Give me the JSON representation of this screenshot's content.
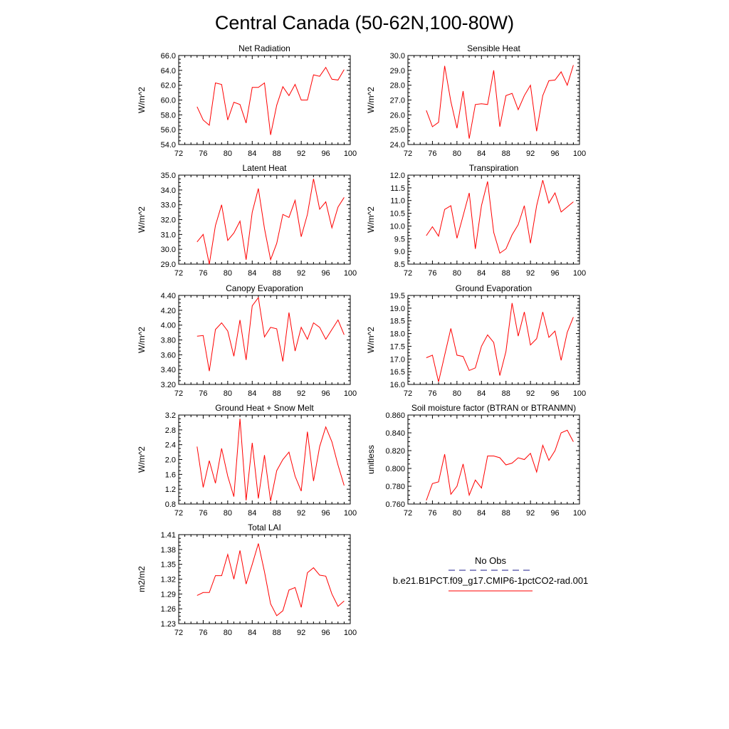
{
  "title": "Central Canada (50-62N,100-80W)",
  "legend": {
    "entries": [
      {
        "label": "No Obs",
        "color": "#1e1e8c",
        "dash": "dashed"
      },
      {
        "label": "b.e21.B1PCT.f09_g17.CMIP6-1pctCO2-rad.001",
        "color": "#ff0000",
        "dash": "solid"
      }
    ]
  },
  "chart_data": [
    {
      "type": "line",
      "title": "Net Radiation",
      "ylabel": "W/m^2",
      "xlim": [
        72,
        100
      ],
      "ylim": [
        54.0,
        66.0
      ],
      "xticks": [
        "72",
        "76",
        "80",
        "84",
        "88",
        "92",
        "96",
        "100"
      ],
      "yticks": [
        "54.0",
        "56.0",
        "58.0",
        "60.0",
        "62.0",
        "64.0",
        "66.0"
      ],
      "x": [
        75,
        76,
        77,
        78,
        79,
        80,
        81,
        82,
        83,
        84,
        85,
        86,
        87,
        88,
        89,
        90,
        91,
        92,
        93,
        94,
        95,
        96,
        97,
        98,
        99
      ],
      "series": [
        {
          "color": "#ff0000",
          "values": [
            59.1,
            57.3,
            56.6,
            62.3,
            62.1,
            57.3,
            59.7,
            59.4,
            56.9,
            61.7,
            61.7,
            62.3,
            55.3,
            59.3,
            61.8,
            60.6,
            62.1,
            60.0,
            60.0,
            63.4,
            63.2,
            64.4,
            62.8,
            62.7,
            64.1
          ]
        }
      ]
    },
    {
      "type": "line",
      "title": "Sensible Heat",
      "ylabel": "W/m^2",
      "xlim": [
        72,
        100
      ],
      "ylim": [
        24.0,
        30.0
      ],
      "xticks": [
        "72",
        "76",
        "80",
        "84",
        "88",
        "92",
        "96",
        "100"
      ],
      "yticks": [
        "24.0",
        "25.0",
        "26.0",
        "27.0",
        "28.0",
        "29.0",
        "30.0"
      ],
      "x": [
        75,
        76,
        77,
        78,
        79,
        80,
        81,
        82,
        83,
        84,
        85,
        86,
        87,
        88,
        89,
        90,
        91,
        92,
        93,
        94,
        95,
        96,
        97,
        98,
        99
      ],
      "series": [
        {
          "color": "#ff0000",
          "values": [
            26.3,
            25.2,
            25.5,
            29.3,
            26.9,
            25.1,
            27.6,
            24.4,
            26.7,
            26.75,
            26.7,
            29.0,
            25.2,
            27.3,
            27.45,
            26.35,
            27.3,
            28.0,
            24.9,
            27.3,
            28.3,
            28.35,
            28.9,
            28.0,
            29.35
          ]
        }
      ]
    },
    {
      "type": "line",
      "title": "Latent Heat",
      "ylabel": "W/m^2",
      "xlim": [
        72,
        100
      ],
      "ylim": [
        29.0,
        35.0
      ],
      "xticks": [
        "72",
        "76",
        "80",
        "84",
        "88",
        "92",
        "96",
        "100"
      ],
      "yticks": [
        "29.0",
        "30.0",
        "31.0",
        "32.0",
        "33.0",
        "34.0",
        "35.0"
      ],
      "x": [
        75,
        76,
        77,
        78,
        79,
        80,
        81,
        82,
        83,
        84,
        85,
        86,
        87,
        88,
        89,
        90,
        91,
        92,
        93,
        94,
        95,
        96,
        97,
        98,
        99
      ],
      "series": [
        {
          "color": "#ff0000",
          "values": [
            30.5,
            31.0,
            29.0,
            31.6,
            33.0,
            30.6,
            31.1,
            31.9,
            29.3,
            32.5,
            34.1,
            31.4,
            29.3,
            30.4,
            32.35,
            32.15,
            33.3,
            30.85,
            32.35,
            34.75,
            32.7,
            33.2,
            31.45,
            32.85,
            33.5
          ]
        }
      ]
    },
    {
      "type": "line",
      "title": "Transpiration",
      "ylabel": "W/m^2",
      "xlim": [
        72,
        100
      ],
      "ylim": [
        8.5,
        12.0
      ],
      "xticks": [
        "72",
        "76",
        "80",
        "84",
        "88",
        "92",
        "96",
        "100"
      ],
      "yticks": [
        "8.5",
        "9.0",
        "9.5",
        "10.0",
        "10.5",
        "11.0",
        "11.5",
        "12.0"
      ],
      "x": [
        75,
        76,
        77,
        78,
        79,
        80,
        81,
        82,
        83,
        84,
        85,
        86,
        87,
        88,
        89,
        90,
        91,
        92,
        93,
        94,
        95,
        96,
        97,
        98,
        99
      ],
      "series": [
        {
          "color": "#ff0000",
          "values": [
            9.62,
            9.97,
            9.6,
            10.65,
            10.8,
            9.52,
            10.4,
            11.3,
            9.1,
            10.8,
            11.75,
            9.75,
            8.93,
            9.1,
            9.65,
            10.05,
            10.8,
            9.32,
            10.8,
            11.8,
            10.9,
            11.3,
            10.55,
            10.75,
            10.95
          ]
        }
      ]
    },
    {
      "type": "line",
      "title": "Canopy Evaporation",
      "ylabel": "W/m^2",
      "xlim": [
        72,
        100
      ],
      "ylim": [
        3.2,
        4.4
      ],
      "xticks": [
        "72",
        "76",
        "80",
        "84",
        "88",
        "92",
        "96",
        "100"
      ],
      "yticks": [
        "3.20",
        "3.40",
        "3.60",
        "3.80",
        "4.00",
        "4.20",
        "4.40"
      ],
      "x": [
        75,
        76,
        77,
        78,
        79,
        80,
        81,
        82,
        83,
        84,
        85,
        86,
        87,
        88,
        89,
        90,
        91,
        92,
        93,
        94,
        95,
        96,
        97,
        98,
        99
      ],
      "series": [
        {
          "color": "#ff0000",
          "values": [
            3.85,
            3.86,
            3.38,
            3.94,
            4.03,
            3.92,
            3.58,
            4.07,
            3.53,
            4.26,
            4.37,
            3.84,
            3.97,
            3.95,
            3.51,
            4.17,
            3.65,
            3.97,
            3.81,
            4.03,
            3.97,
            3.81,
            3.94,
            4.07,
            3.87
          ]
        }
      ]
    },
    {
      "type": "line",
      "title": "Ground Evaporation",
      "ylabel": "W/m^2",
      "xlim": [
        72,
        100
      ],
      "ylim": [
        16.0,
        19.5
      ],
      "xticks": [
        "72",
        "76",
        "80",
        "84",
        "88",
        "92",
        "96",
        "100"
      ],
      "yticks": [
        "16.0",
        "16.5",
        "17.0",
        "17.5",
        "18.0",
        "18.5",
        "19.0",
        "19.5"
      ],
      "x": [
        75,
        76,
        77,
        78,
        79,
        80,
        81,
        82,
        83,
        84,
        85,
        86,
        87,
        88,
        89,
        90,
        91,
        92,
        93,
        94,
        95,
        96,
        97,
        98,
        99
      ],
      "series": [
        {
          "color": "#ff0000",
          "values": [
            17.05,
            17.15,
            16.1,
            17.15,
            18.2,
            17.15,
            17.1,
            16.55,
            16.65,
            17.5,
            17.95,
            17.65,
            16.35,
            17.3,
            19.2,
            17.9,
            18.85,
            17.55,
            17.8,
            18.85,
            17.85,
            18.1,
            16.95,
            18.05,
            18.65
          ]
        }
      ]
    },
    {
      "type": "line",
      "title": "Ground Heat + Snow Melt",
      "ylabel": "W/m^2",
      "xlim": [
        72,
        100
      ],
      "ylim": [
        0.8,
        3.2
      ],
      "xticks": [
        "72",
        "76",
        "80",
        "84",
        "88",
        "92",
        "96",
        "100"
      ],
      "yticks": [
        "0.8",
        "1.2",
        "1.6",
        "2.0",
        "2.4",
        "2.8",
        "3.2"
      ],
      "x": [
        75,
        76,
        77,
        78,
        79,
        80,
        81,
        82,
        83,
        84,
        85,
        86,
        87,
        88,
        89,
        90,
        91,
        92,
        93,
        94,
        95,
        96,
        97,
        98,
        99
      ],
      "series": [
        {
          "color": "#ff0000",
          "values": [
            2.35,
            1.25,
            1.97,
            1.36,
            2.3,
            1.55,
            1.0,
            3.1,
            0.9,
            2.45,
            0.95,
            2.12,
            0.88,
            1.7,
            2.0,
            2.2,
            1.55,
            1.15,
            2.75,
            1.42,
            2.35,
            2.88,
            2.48,
            1.85,
            1.3
          ]
        }
      ]
    },
    {
      "type": "line",
      "title": "Soil moisture factor (BTRAN or BTRANMN)",
      "ylabel": "unitless",
      "xlim": [
        72,
        100
      ],
      "ylim": [
        0.76,
        0.86
      ],
      "xticks": [
        "72",
        "76",
        "80",
        "84",
        "88",
        "92",
        "96",
        "100"
      ],
      "yticks": [
        "0.760",
        "0.780",
        "0.800",
        "0.820",
        "0.840",
        "0.860"
      ],
      "x": [
        75,
        76,
        77,
        78,
        79,
        80,
        81,
        82,
        83,
        84,
        85,
        86,
        87,
        88,
        89,
        90,
        91,
        92,
        93,
        94,
        95,
        96,
        97,
        98,
        99
      ],
      "series": [
        {
          "color": "#ff0000",
          "values": [
            0.764,
            0.783,
            0.785,
            0.816,
            0.771,
            0.78,
            0.805,
            0.77,
            0.787,
            0.778,
            0.814,
            0.814,
            0.812,
            0.804,
            0.806,
            0.812,
            0.81,
            0.817,
            0.796,
            0.826,
            0.809,
            0.82,
            0.84,
            0.843,
            0.83
          ]
        }
      ]
    },
    {
      "type": "line",
      "title": "Total LAI",
      "ylabel": "m2/m2",
      "xlim": [
        72,
        100
      ],
      "ylim": [
        1.23,
        1.41
      ],
      "xticks": [
        "72",
        "76",
        "80",
        "84",
        "88",
        "92",
        "96",
        "100"
      ],
      "yticks": [
        "1.23",
        "1.26",
        "1.29",
        "1.32",
        "1.35",
        "1.38",
        "1.41"
      ],
      "x": [
        75,
        76,
        77,
        78,
        79,
        80,
        81,
        82,
        83,
        84,
        85,
        86,
        87,
        88,
        89,
        90,
        91,
        92,
        93,
        94,
        95,
        96,
        97,
        98,
        99
      ],
      "series": [
        {
          "color": "#ff0000",
          "values": [
            1.287,
            1.293,
            1.293,
            1.327,
            1.327,
            1.37,
            1.32,
            1.378,
            1.31,
            1.35,
            1.392,
            1.335,
            1.27,
            1.246,
            1.256,
            1.298,
            1.303,
            1.263,
            1.333,
            1.343,
            1.328,
            1.326,
            1.29,
            1.265,
            1.276
          ]
        }
      ]
    }
  ]
}
